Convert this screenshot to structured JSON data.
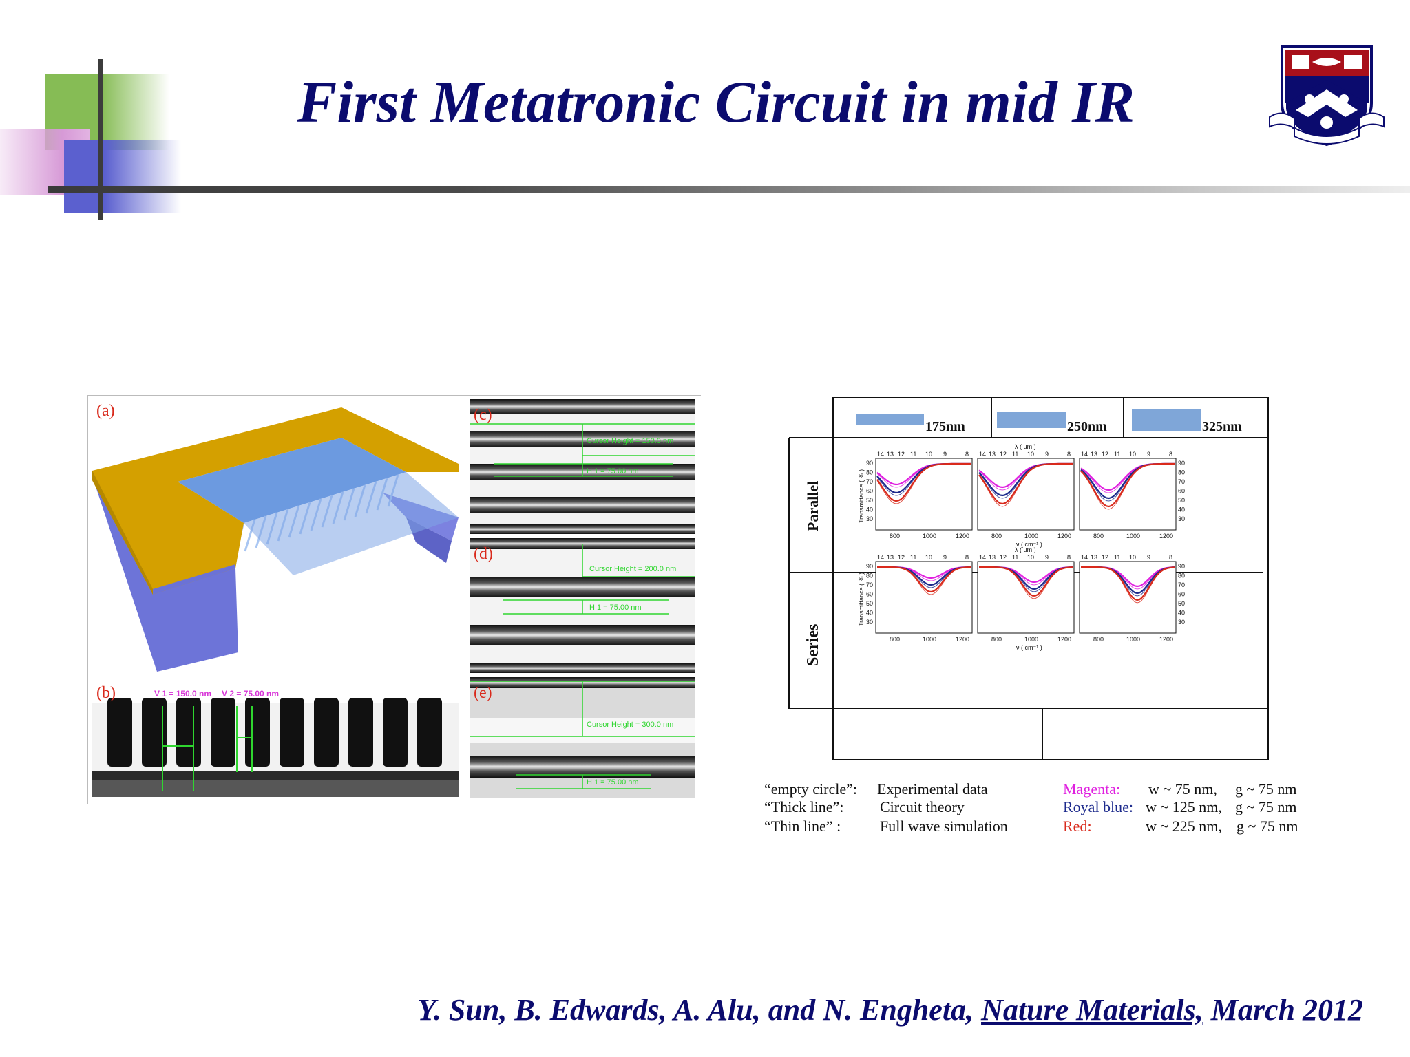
{
  "slide": {
    "title": "First Metatronic Circuit in mid IR",
    "citation": {
      "authors": "Y. Sun, B. Edwards, A. Alu, and N. Engheta,",
      "journal": "Nature Materials,",
      "date": "March 2012"
    }
  },
  "left_figure": {
    "panel_labels": [
      "(a)",
      "(b)",
      "(c)",
      "(d)",
      "(e)"
    ],
    "b_labels": [
      "V 1 = 150.0 nm",
      "V 2 = 75.00 nm"
    ],
    "c_labels": [
      "Cursor Height = 150.0 nm",
      "H 1 = 75.00 nm"
    ],
    "d_labels": [
      "Cursor Height = 200.0 nm",
      "H 1 = 75.00 nm"
    ],
    "e_labels": [
      "Cursor Height = 300.0 nm",
      "H 1 = 75.00 nm"
    ]
  },
  "right_figure": {
    "column_labels": [
      "175nm",
      "250nm",
      "325nm"
    ],
    "row_labels": [
      "Parallel",
      "Series"
    ],
    "top_axis_label": "λ ( μm )",
    "top_ticks": [
      "14",
      "13",
      "12",
      "11",
      "10",
      "9",
      "8"
    ],
    "bottom_ticks": [
      "800",
      "1000",
      "1200"
    ],
    "bottom_axis_label": "ν ( cm⁻¹ )",
    "y_axis_label": "Transmittance ( % )",
    "y_ticks": [
      "90",
      "80",
      "70",
      "60",
      "50",
      "40",
      "30"
    ]
  },
  "legend": {
    "rows": [
      {
        "key": "“empty circle”:",
        "desc": "Experimental data",
        "color_name": "Magenta:",
        "color": "#e020e0",
        "w": "w ~ 75 nm,",
        "g": "g ~ 75 nm"
      },
      {
        "key": "“Thick line”:",
        "desc": "Circuit theory",
        "color_name": "Royal blue:",
        "color": "#1c2a8c",
        "w": "w ~ 125 nm,",
        "g": "g ~ 75 nm"
      },
      {
        "key": "“Thin line” :",
        "desc": "Full wave simulation",
        "color_name": "Red:",
        "color": "#d92a1c",
        "w": "w ~ 225 nm,",
        "g": "g ~ 75 nm"
      }
    ]
  },
  "colors": {
    "title": "#0b0b6e",
    "gold": "#d4a000",
    "periwinkle": "#6b72d6",
    "blue_bar": "#7fa6d8",
    "magenta": "#e020e0",
    "royal_blue": "#1c2a8c",
    "red": "#d92a1c"
  }
}
